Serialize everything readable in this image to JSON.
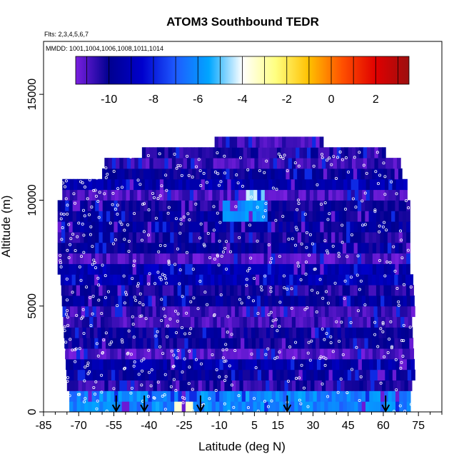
{
  "chart_data": {
    "type": "heatmap",
    "title": "ATOM3 Southbound TEDR",
    "flights_note": "Flts: 2,3,4,5,6,7",
    "dates_note": "MMDD: 1001,1004,1006,1008,1011,1014",
    "xlabel": "Latitude (deg N)",
    "ylabel": "Altitude (m)",
    "xlim": [
      -85,
      85
    ],
    "ylim": [
      0,
      17500
    ],
    "x_ticks": [
      -85,
      -70,
      -55,
      -40,
      -25,
      -10,
      5,
      15,
      30,
      45,
      60,
      75
    ],
    "x_tick_labels": [
      "-85",
      "-70",
      "-55",
      "-40",
      "-25",
      "-10",
      "5",
      "15",
      "30",
      "45",
      "60",
      "75"
    ],
    "y_ticks": [
      0,
      5000,
      10000,
      15000
    ],
    "y_tick_labels": [
      "0",
      "5000",
      "10000",
      "15000"
    ],
    "colorbar": {
      "range": [
        -11.5,
        3.5
      ],
      "ticks": [
        -10,
        -8,
        -6,
        -4,
        -2,
        0,
        2
      ],
      "tick_labels": [
        "-10",
        "-8",
        "-6",
        "-4",
        "-2",
        "0",
        "2"
      ],
      "colors": [
        "#7a1fe0",
        "#00008f",
        "#0000cd",
        "#1e5bff",
        "#00a6ff",
        "#ffffff",
        "#ffff80",
        "#ffc000",
        "#ff5000",
        "#e00000",
        "#9c0f0f"
      ]
    },
    "arrow_latitudes": [
      -54,
      -42,
      -18,
      19,
      61
    ],
    "dominant_value_range": [
      -11,
      -9
    ]
  }
}
